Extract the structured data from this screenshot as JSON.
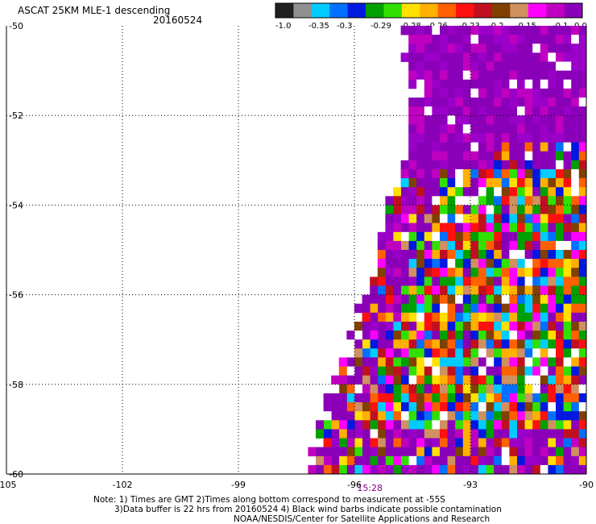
{
  "header": {
    "title": "ASCAT 25KM MLE-1 descending",
    "date": "20160524"
  },
  "colorbar": {
    "colors": [
      "#202020",
      "#909090",
      "#00ccff",
      "#0070ff",
      "#0018e0",
      "#00a000",
      "#30e000",
      "#ffe000",
      "#ffb000",
      "#ff6000",
      "#ff1010",
      "#c01020",
      "#804000",
      "#d09060",
      "#ff00ff",
      "#c000c0",
      "#8a00b8"
    ],
    "labels": [
      "-1.0",
      "-0.35",
      "-0.3",
      "-0.29",
      "-0.28",
      "-0.26",
      "-0.23",
      "-0.2",
      "-0.15",
      "-0.1",
      "0.0"
    ]
  },
  "chart_data": {
    "type": "heatmap",
    "title": "ASCAT 25KM MLE-1 descending",
    "x_ticks": [
      "-105",
      "-102",
      "-99",
      "-96",
      "-93",
      "-90"
    ],
    "y_ticks": [
      "-50",
      "-52",
      "-54",
      "-56",
      "-58",
      "-60"
    ],
    "xlim": [
      -105,
      -90
    ],
    "ylim": [
      -60,
      -50
    ],
    "grid": true,
    "time_label": "15:28",
    "value_range": [
      -1.0,
      0.0
    ],
    "swath": {
      "west_edge_lon_at_lat": [
        [
          -50,
          -94.8
        ],
        [
          -52,
          -94.6
        ],
        [
          -54,
          -95.2
        ],
        [
          -56,
          -95.8
        ],
        [
          -58,
          -96.6
        ],
        [
          -60,
          -97.5
        ]
      ]
    }
  },
  "notes": {
    "line1": "Note: 1) Times are GMT 2)Times along bottom correspond to measurement at -55S",
    "line2": "3)Data buffer is 22 hrs from 20160524 4) Black wind barbs indicate possible contamination",
    "line3": "NOAA/NESDIS/Center for Satellite Applications and Research"
  }
}
